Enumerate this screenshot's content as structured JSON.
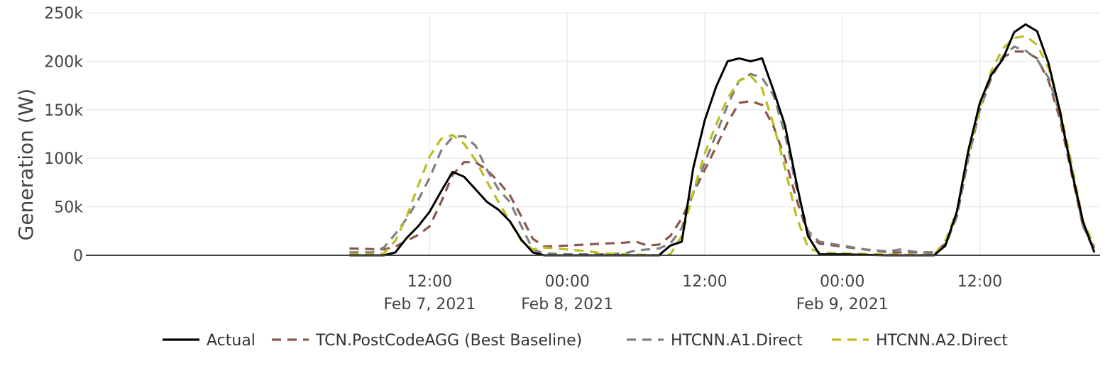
{
  "chart_data": {
    "type": "line",
    "title": "",
    "xlabel": "",
    "ylabel": "Generation (W)",
    "grid": true,
    "legend_position": "bottom",
    "x_range": [
      "2021-02-06T06:00",
      "2021-02-09T22:30"
    ],
    "ylim": [
      0,
      250000
    ],
    "y_ticks": [
      {
        "value": 0,
        "label": "0"
      },
      {
        "value": 50000,
        "label": "50k"
      },
      {
        "value": 100000,
        "label": "100k"
      },
      {
        "value": 150000,
        "label": "150k"
      },
      {
        "value": 200000,
        "label": "200k"
      },
      {
        "value": 250000,
        "label": "250k"
      }
    ],
    "x_ticks": [
      {
        "value": "2021-02-07T12:00",
        "time": "12:00",
        "date": "Feb 7, 2021"
      },
      {
        "value": "2021-02-08T00:00",
        "time": "00:00",
        "date": "Feb 8, 2021"
      },
      {
        "value": "2021-02-08T12:00",
        "time": "12:00",
        "date": ""
      },
      {
        "value": "2021-02-09T00:00",
        "time": "00:00",
        "date": "Feb 9, 2021"
      },
      {
        "value": "2021-02-09T12:00",
        "time": "12:00",
        "date": ""
      }
    ],
    "series": [
      {
        "name": "Actual",
        "color": "#000000",
        "dash": "solid",
        "points": [
          [
            "2021-02-07T05:00",
            0
          ],
          [
            "2021-02-07T07:00",
            0
          ],
          [
            "2021-02-07T08:00",
            0
          ],
          [
            "2021-02-07T09:00",
            3000
          ],
          [
            "2021-02-07T10:00",
            18000
          ],
          [
            "2021-02-07T11:00",
            30000
          ],
          [
            "2021-02-07T12:00",
            45000
          ],
          [
            "2021-02-07T13:00",
            66000
          ],
          [
            "2021-02-07T14:00",
            86000
          ],
          [
            "2021-02-07T15:00",
            81000
          ],
          [
            "2021-02-07T16:00",
            68000
          ],
          [
            "2021-02-07T17:00",
            55000
          ],
          [
            "2021-02-07T18:00",
            47000
          ],
          [
            "2021-02-07T19:00",
            35000
          ],
          [
            "2021-02-07T20:00",
            16000
          ],
          [
            "2021-02-07T21:00",
            3000
          ],
          [
            "2021-02-07T22:00",
            0
          ],
          [
            "2021-02-08T03:00",
            0
          ],
          [
            "2021-02-08T08:00",
            0
          ],
          [
            "2021-02-08T09:00",
            10000
          ],
          [
            "2021-02-08T10:00",
            14000
          ],
          [
            "2021-02-08T11:00",
            90000
          ],
          [
            "2021-02-08T12:00",
            139000
          ],
          [
            "2021-02-08T13:00",
            174000
          ],
          [
            "2021-02-08T14:00",
            200000
          ],
          [
            "2021-02-08T15:00",
            203000
          ],
          [
            "2021-02-08T16:00",
            200000
          ],
          [
            "2021-02-08T17:00",
            203000
          ],
          [
            "2021-02-08T18:00",
            170000
          ],
          [
            "2021-02-08T19:00",
            134000
          ],
          [
            "2021-02-08T20:00",
            75000
          ],
          [
            "2021-02-08T21:00",
            20000
          ],
          [
            "2021-02-08T22:00",
            1000
          ],
          [
            "2021-02-09T00:00",
            1000
          ],
          [
            "2021-02-09T04:00",
            0
          ],
          [
            "2021-02-09T08:00",
            0
          ],
          [
            "2021-02-09T09:00",
            10000
          ],
          [
            "2021-02-09T10:00",
            45000
          ],
          [
            "2021-02-09T11:00",
            108000
          ],
          [
            "2021-02-09T12:00",
            157000
          ],
          [
            "2021-02-09T13:00",
            186000
          ],
          [
            "2021-02-09T14:00",
            202000
          ],
          [
            "2021-02-09T15:00",
            230000
          ],
          [
            "2021-02-09T16:00",
            238000
          ],
          [
            "2021-02-09T17:00",
            231000
          ],
          [
            "2021-02-09T18:00",
            198000
          ],
          [
            "2021-02-09T19:00",
            148000
          ],
          [
            "2021-02-09T20:00",
            88000
          ],
          [
            "2021-02-09T21:00",
            35000
          ],
          [
            "2021-02-09T22:00",
            3000
          ]
        ]
      },
      {
        "name": "TCN.PostCodeAGG (Best Baseline)",
        "color": "#8c564b",
        "dash": "dashed",
        "points": [
          [
            "2021-02-07T05:00",
            7000
          ],
          [
            "2021-02-07T08:00",
            6000
          ],
          [
            "2021-02-07T09:00",
            9000
          ],
          [
            "2021-02-07T10:00",
            15000
          ],
          [
            "2021-02-07T11:00",
            21000
          ],
          [
            "2021-02-07T12:00",
            30000
          ],
          [
            "2021-02-07T13:00",
            55000
          ],
          [
            "2021-02-07T14:00",
            83000
          ],
          [
            "2021-02-07T15:00",
            96000
          ],
          [
            "2021-02-07T16:00",
            96000
          ],
          [
            "2021-02-07T17:00",
            88000
          ],
          [
            "2021-02-07T18:00",
            76000
          ],
          [
            "2021-02-07T19:00",
            62000
          ],
          [
            "2021-02-07T20:00",
            40000
          ],
          [
            "2021-02-07T21:00",
            17000
          ],
          [
            "2021-02-07T22:00",
            9000
          ],
          [
            "2021-02-08T00:00",
            10000
          ],
          [
            "2021-02-08T03:00",
            12000
          ],
          [
            "2021-02-08T05:00",
            13000
          ],
          [
            "2021-02-08T06:00",
            14000
          ],
          [
            "2021-02-08T07:00",
            10000
          ],
          [
            "2021-02-08T08:00",
            11000
          ],
          [
            "2021-02-08T09:00",
            20000
          ],
          [
            "2021-02-08T10:00",
            38000
          ],
          [
            "2021-02-08T11:00",
            64000
          ],
          [
            "2021-02-08T12:00",
            88000
          ],
          [
            "2021-02-08T13:00",
            112000
          ],
          [
            "2021-02-08T14:00",
            137000
          ],
          [
            "2021-02-08T15:00",
            157000
          ],
          [
            "2021-02-08T16:00",
            159000
          ],
          [
            "2021-02-08T17:00",
            155000
          ],
          [
            "2021-02-08T18:00",
            133000
          ],
          [
            "2021-02-08T19:00",
            100000
          ],
          [
            "2021-02-08T20:00",
            58000
          ],
          [
            "2021-02-08T21:00",
            22000
          ],
          [
            "2021-02-08T22:00",
            12000
          ],
          [
            "2021-02-09T00:00",
            9000
          ],
          [
            "2021-02-09T02:00",
            6000
          ],
          [
            "2021-02-09T04:00",
            3000
          ],
          [
            "2021-02-09T06:00",
            3000
          ],
          [
            "2021-02-09T08:00",
            3000
          ],
          [
            "2021-02-09T09:00",
            12000
          ],
          [
            "2021-02-09T10:00",
            40000
          ],
          [
            "2021-02-09T11:00",
            100000
          ],
          [
            "2021-02-09T12:00",
            150000
          ],
          [
            "2021-02-09T13:00",
            183000
          ],
          [
            "2021-02-09T14:00",
            204000
          ],
          [
            "2021-02-09T15:00",
            210000
          ],
          [
            "2021-02-09T16:00",
            210000
          ],
          [
            "2021-02-09T17:00",
            203000
          ],
          [
            "2021-02-09T18:00",
            180000
          ],
          [
            "2021-02-09T19:00",
            140000
          ],
          [
            "2021-02-09T20:00",
            85000
          ],
          [
            "2021-02-09T21:00",
            30000
          ],
          [
            "2021-02-09T22:00",
            8000
          ]
        ]
      },
      {
        "name": "HTCNN.A1.Direct",
        "color": "#7f7f7f",
        "dash": "dashed",
        "points": [
          [
            "2021-02-07T05:00",
            3000
          ],
          [
            "2021-02-07T07:00",
            3000
          ],
          [
            "2021-02-07T08:00",
            8000
          ],
          [
            "2021-02-07T09:00",
            22000
          ],
          [
            "2021-02-07T10:00",
            38000
          ],
          [
            "2021-02-07T11:00",
            57000
          ],
          [
            "2021-02-07T12:00",
            80000
          ],
          [
            "2021-02-07T13:00",
            108000
          ],
          [
            "2021-02-07T14:00",
            122000
          ],
          [
            "2021-02-07T15:00",
            123000
          ],
          [
            "2021-02-07T16:00",
            113000
          ],
          [
            "2021-02-07T17:00",
            88000
          ],
          [
            "2021-02-07T18:00",
            68000
          ],
          [
            "2021-02-07T19:00",
            55000
          ],
          [
            "2021-02-07T20:00",
            30000
          ],
          [
            "2021-02-07T21:00",
            6000
          ],
          [
            "2021-02-07T22:00",
            2000
          ],
          [
            "2021-02-08T00:00",
            1000
          ],
          [
            "2021-02-08T03:00",
            1000
          ],
          [
            "2021-02-08T05:00",
            2000
          ],
          [
            "2021-02-08T06:00",
            5000
          ],
          [
            "2021-02-08T08:00",
            7000
          ],
          [
            "2021-02-08T09:00",
            12000
          ],
          [
            "2021-02-08T10:00",
            28000
          ],
          [
            "2021-02-08T11:00",
            65000
          ],
          [
            "2021-02-08T12:00",
            95000
          ],
          [
            "2021-02-08T13:00",
            125000
          ],
          [
            "2021-02-08T14:00",
            155000
          ],
          [
            "2021-02-08T15:00",
            180000
          ],
          [
            "2021-02-08T16:00",
            187000
          ],
          [
            "2021-02-08T17:00",
            183000
          ],
          [
            "2021-02-08T18:00",
            165000
          ],
          [
            "2021-02-08T19:00",
            125000
          ],
          [
            "2021-02-08T20:00",
            70000
          ],
          [
            "2021-02-08T21:00",
            25000
          ],
          [
            "2021-02-08T22:00",
            14000
          ],
          [
            "2021-02-09T00:00",
            10000
          ],
          [
            "2021-02-09T02:00",
            6000
          ],
          [
            "2021-02-09T04:00",
            4000
          ],
          [
            "2021-02-09T05:00",
            6000
          ],
          [
            "2021-02-09T06:00",
            4000
          ],
          [
            "2021-02-09T08:00",
            2000
          ],
          [
            "2021-02-09T09:00",
            10000
          ],
          [
            "2021-02-09T10:00",
            40000
          ],
          [
            "2021-02-09T11:00",
            100000
          ],
          [
            "2021-02-09T12:00",
            150000
          ],
          [
            "2021-02-09T13:00",
            185000
          ],
          [
            "2021-02-09T14:00",
            205000
          ],
          [
            "2021-02-09T15:00",
            215000
          ],
          [
            "2021-02-09T16:00",
            211000
          ],
          [
            "2021-02-09T17:00",
            202000
          ],
          [
            "2021-02-09T18:00",
            183000
          ],
          [
            "2021-02-09T19:00",
            145000
          ],
          [
            "2021-02-09T20:00",
            90000
          ],
          [
            "2021-02-09T21:00",
            30000
          ],
          [
            "2021-02-09T22:00",
            5000
          ]
        ]
      },
      {
        "name": "HTCNN.A2.Direct",
        "color": "#bcbd22",
        "dash": "dashed",
        "points": [
          [
            "2021-02-07T05:00",
            1000
          ],
          [
            "2021-02-07T07:00",
            1000
          ],
          [
            "2021-02-07T08:00",
            2000
          ],
          [
            "2021-02-07T09:00",
            15000
          ],
          [
            "2021-02-07T10:00",
            40000
          ],
          [
            "2021-02-07T11:00",
            72000
          ],
          [
            "2021-02-07T12:00",
            102000
          ],
          [
            "2021-02-07T13:00",
            120000
          ],
          [
            "2021-02-07T14:00",
            124000
          ],
          [
            "2021-02-07T15:00",
            115000
          ],
          [
            "2021-02-07T16:00",
            98000
          ],
          [
            "2021-02-07T17:00",
            76000
          ],
          [
            "2021-02-07T18:00",
            55000
          ],
          [
            "2021-02-07T19:00",
            35000
          ],
          [
            "2021-02-07T20:00",
            15000
          ],
          [
            "2021-02-07T21:00",
            6000
          ],
          [
            "2021-02-07T22:00",
            8000
          ],
          [
            "2021-02-08T00:00",
            6000
          ],
          [
            "2021-02-08T02:00",
            4000
          ],
          [
            "2021-02-08T03:00",
            2000
          ],
          [
            "2021-02-08T05:00",
            1000
          ],
          [
            "2021-02-08T08:00",
            0
          ],
          [
            "2021-02-08T09:00",
            1000
          ],
          [
            "2021-02-08T10:00",
            20000
          ],
          [
            "2021-02-08T11:00",
            65000
          ],
          [
            "2021-02-08T12:00",
            105000
          ],
          [
            "2021-02-08T13:00",
            135000
          ],
          [
            "2021-02-08T14:00",
            162000
          ],
          [
            "2021-02-08T15:00",
            180000
          ],
          [
            "2021-02-08T16:00",
            185000
          ],
          [
            "2021-02-08T17:00",
            172000
          ],
          [
            "2021-02-08T18:00",
            135000
          ],
          [
            "2021-02-08T19:00",
            90000
          ],
          [
            "2021-02-08T20:00",
            40000
          ],
          [
            "2021-02-08T21:00",
            8000
          ],
          [
            "2021-02-08T22:00",
            3000
          ],
          [
            "2021-02-09T00:00",
            2000
          ],
          [
            "2021-02-09T03:00",
            1000
          ],
          [
            "2021-02-09T08:00",
            0
          ],
          [
            "2021-02-09T09:00",
            15000
          ],
          [
            "2021-02-09T10:00",
            45000
          ],
          [
            "2021-02-09T11:00",
            105000
          ],
          [
            "2021-02-09T12:00",
            152000
          ],
          [
            "2021-02-09T13:00",
            190000
          ],
          [
            "2021-02-09T14:00",
            213000
          ],
          [
            "2021-02-09T15:00",
            224000
          ],
          [
            "2021-02-09T16:00",
            226000
          ],
          [
            "2021-02-09T17:00",
            217000
          ],
          [
            "2021-02-09T18:00",
            193000
          ],
          [
            "2021-02-09T19:00",
            150000
          ],
          [
            "2021-02-09T20:00",
            95000
          ],
          [
            "2021-02-09T21:00",
            35000
          ],
          [
            "2021-02-09T22:00",
            10000
          ]
        ]
      }
    ]
  }
}
